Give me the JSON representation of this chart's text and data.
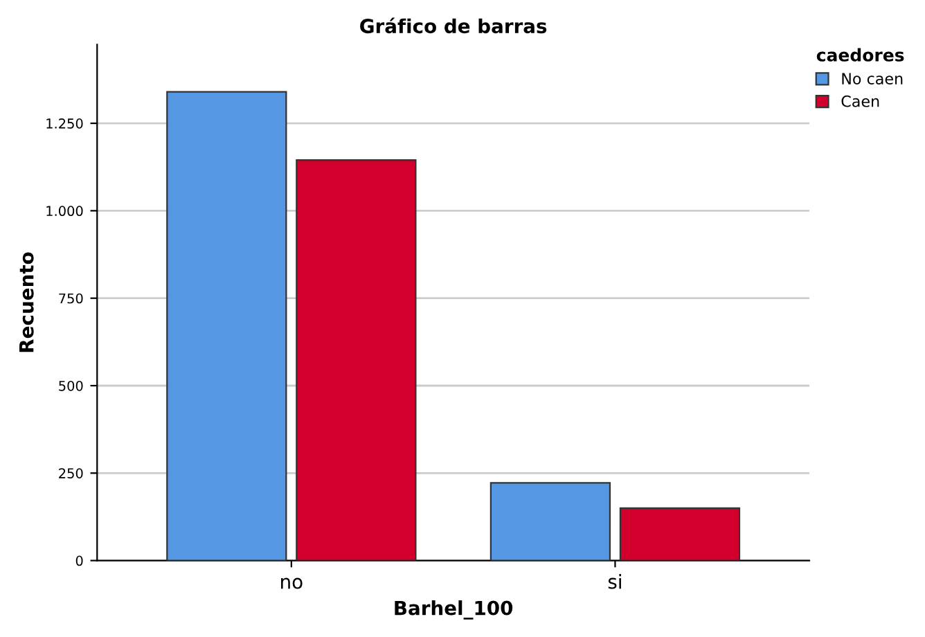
{
  "chart_data": {
    "type": "bar",
    "title": "Gráfico de barras",
    "xlabel": "Barhel_100",
    "ylabel": "Recuento",
    "legend_title": "caedores",
    "categories": [
      "no",
      "si"
    ],
    "series": [
      {
        "name": "No caen",
        "color": "#5597e3",
        "values": [
          1340,
          222
        ]
      },
      {
        "name": "Caen",
        "color": "#d3002d",
        "values": [
          1145,
          150
        ]
      }
    ],
    "ylim": [
      0,
      1475
    ],
    "yticks": [
      0,
      {
        "value": 250,
        "label": "250"
      },
      {
        "value": 500,
        "label": "500"
      },
      {
        "value": 750,
        "label": "750"
      },
      {
        "value": 1000,
        "label": "1.000"
      },
      {
        "value": 1250,
        "label": "1.250"
      }
    ],
    "grid": "y",
    "legend": "top right"
  }
}
